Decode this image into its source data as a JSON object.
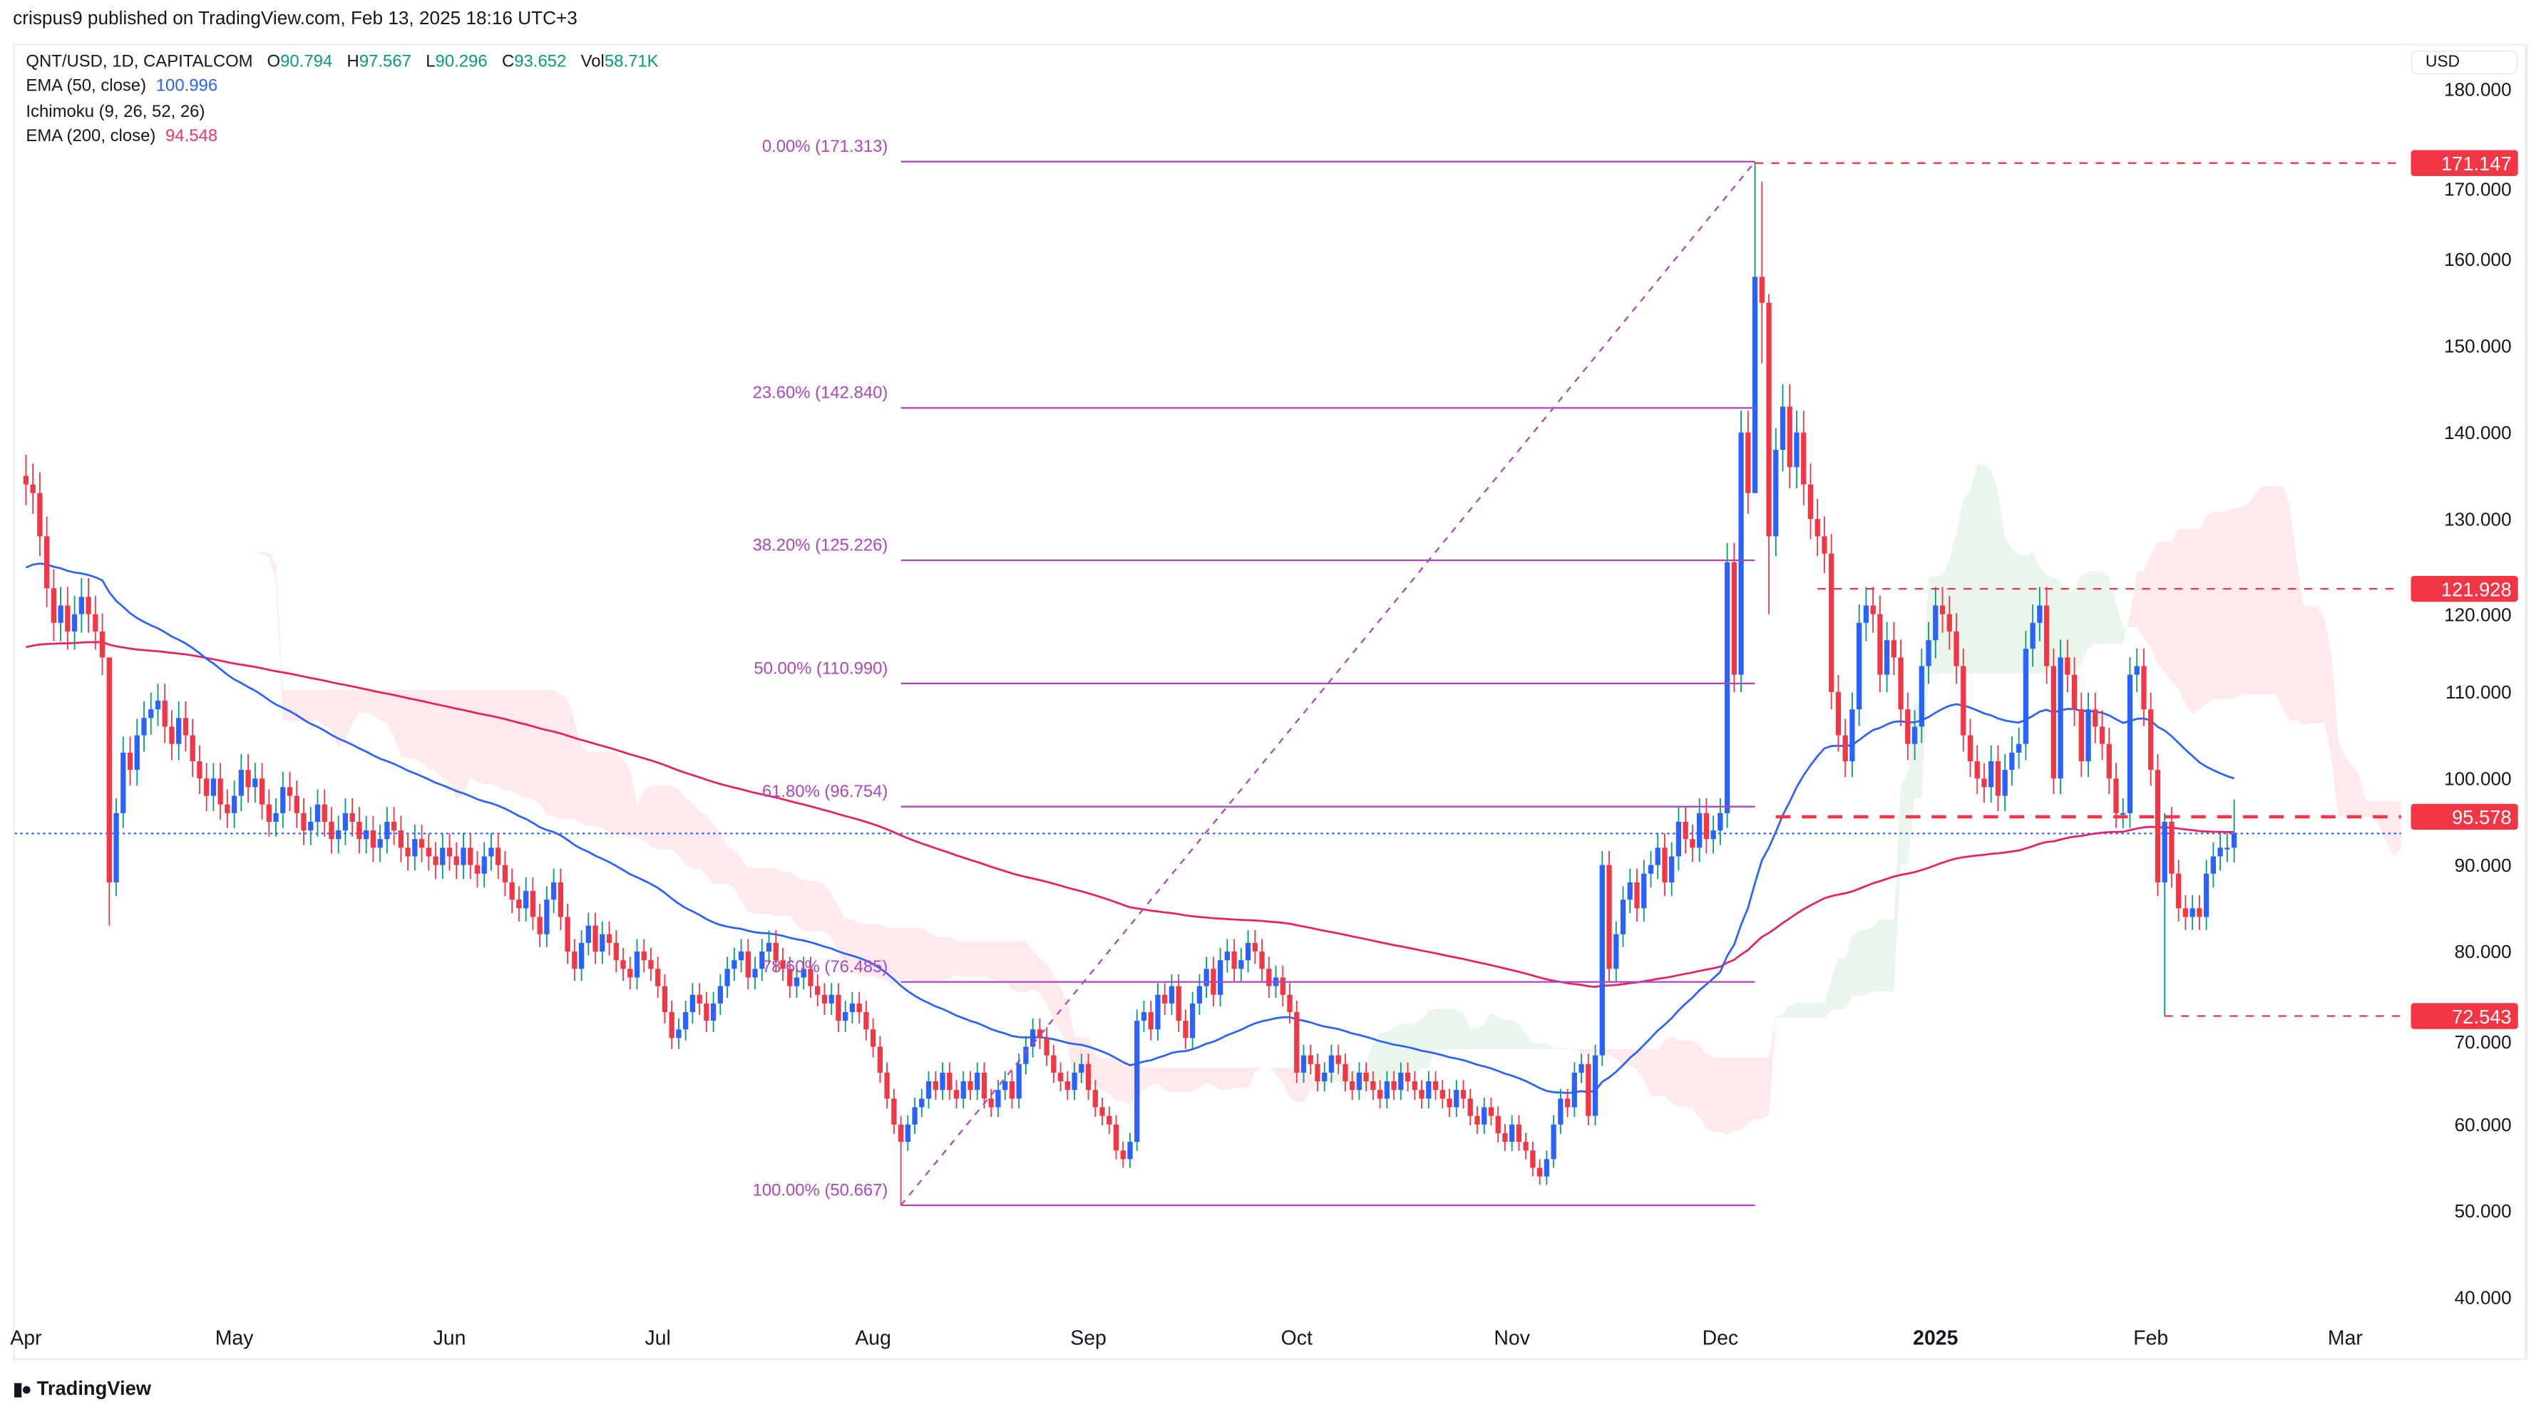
{
  "header": {
    "published": "crispus9 published on TradingView.com, Feb 13, 2025 18:16 UTC+3"
  },
  "legend": {
    "symbol": "QNT/USD, 1D, CAPITALCOM",
    "open_label": "O",
    "open": "90.794",
    "high_label": "H",
    "high": "97.567",
    "low_label": "L",
    "low": "90.296",
    "close_label": "C",
    "close": "93.652",
    "vol_label": "Vol",
    "vol": "58.71K",
    "ema50_label": "EMA (50, close)",
    "ema50": "100.996",
    "ichimoku_label": "Ichimoku (9, 26, 52, 26)",
    "ema200_label": "EMA (200, close)",
    "ema200": "94.548"
  },
  "axis": {
    "currency": "USD"
  },
  "footer": {
    "logo_text": "TradingView"
  },
  "colors": {
    "up_body": "#2962ff",
    "up_wick": "#089981",
    "down": "#f23645",
    "ema50": "#2962ff",
    "ema200": "#e91e63",
    "fib": "#ab47bc",
    "cloud_up": "rgba(67,160,71,0.11)",
    "cloud_down": "rgba(242,54,69,0.11)",
    "level": "#f23645",
    "last_price": "#2962ff"
  },
  "chart_data": {
    "type": "candlestick",
    "title": "QNT/USD, 1D, CAPITALCOM",
    "start_date": "2024-04-01",
    "ylim": [
      35,
      183
    ],
    "y_ticks": [
      40,
      50,
      60,
      70,
      80,
      90,
      100,
      110,
      120,
      130,
      140,
      150,
      160,
      170,
      180
    ],
    "y_tick_labels": [
      "40.000",
      "50.000",
      "60.000",
      "70.000",
      "80.000",
      "90.000",
      "100.000",
      "110.000",
      "120.000",
      "130.000",
      "140.000",
      "150.000",
      "160.000",
      "170.000",
      "180.000"
    ],
    "x_ticks": [
      {
        "label": "Apr",
        "day": 0
      },
      {
        "label": "May",
        "day": 30
      },
      {
        "label": "Jun",
        "day": 61
      },
      {
        "label": "Jul",
        "day": 91
      },
      {
        "label": "Aug",
        "day": 122
      },
      {
        "label": "Sep",
        "day": 153
      },
      {
        "label": "Oct",
        "day": 183
      },
      {
        "label": "Nov",
        "day": 214
      },
      {
        "label": "Dec",
        "day": 244
      },
      {
        "label": "2025",
        "day": 275,
        "bold": true
      },
      {
        "label": "Feb",
        "day": 306
      },
      {
        "label": "Mar",
        "day": 334
      }
    ],
    "x_range_days": [
      -2,
      342
    ],
    "closes": [
      134,
      133,
      128,
      122,
      118,
      120,
      117,
      119,
      121,
      119,
      117,
      114,
      88,
      96,
      103,
      101,
      105,
      107,
      108,
      109,
      106,
      104,
      107,
      105,
      102,
      100,
      98,
      100,
      97,
      96,
      98,
      101,
      99,
      100,
      97,
      95,
      96,
      99,
      98,
      96,
      94,
      95,
      97,
      95,
      93,
      94,
      96,
      95,
      93,
      94,
      92,
      93,
      95,
      94,
      92,
      91,
      93,
      92,
      91,
      90,
      92,
      91,
      90,
      92,
      90,
      89,
      91,
      92,
      90,
      88,
      86,
      85,
      87,
      84,
      82,
      86,
      88,
      84,
      80,
      78,
      81,
      83,
      80,
      82,
      81,
      79,
      78,
      77,
      80,
      79,
      78,
      76,
      73,
      70,
      71,
      73,
      75,
      74,
      72,
      74,
      76,
      78,
      79,
      80,
      77,
      78,
      80,
      81,
      79,
      78,
      76,
      77,
      78,
      76,
      75,
      74,
      75,
      72,
      73,
      74,
      73,
      71,
      69,
      66,
      63,
      60,
      58,
      60,
      62,
      63,
      65,
      64,
      66,
      64,
      63,
      65,
      64,
      66,
      63,
      62,
      64,
      65,
      63,
      67,
      69,
      71,
      70,
      68,
      66,
      65,
      64,
      66,
      67,
      64,
      62,
      61,
      60,
      57,
      56,
      58,
      72,
      73,
      71,
      75,
      74,
      76,
      72,
      70,
      74,
      76,
      78,
      75,
      79,
      80,
      78,
      79,
      81,
      80,
      78,
      76,
      77,
      75,
      73,
      66,
      68,
      67,
      65,
      66,
      68,
      67,
      65,
      64,
      66,
      65,
      64,
      63,
      65,
      64,
      66,
      65,
      64,
      63,
      65,
      64,
      63,
      62,
      64,
      63,
      61,
      60,
      62,
      61,
      59,
      58,
      60,
      58,
      57,
      55,
      54,
      56,
      60,
      63,
      62,
      66,
      67,
      61,
      68,
      90,
      78,
      82,
      86,
      88,
      85,
      89,
      90,
      92,
      88,
      91,
      95,
      93,
      92,
      96,
      93,
      94,
      96,
      125,
      112,
      140,
      133,
      158,
      155,
      128,
      138,
      143,
      136,
      140,
      134,
      130,
      128,
      126,
      110,
      105,
      102,
      108,
      118,
      120,
      119,
      112,
      116,
      114,
      108,
      104,
      106,
      113,
      116,
      120,
      119,
      117,
      113,
      105,
      102,
      100,
      99,
      102,
      98,
      101,
      103,
      104,
      115,
      118,
      120,
      113,
      100,
      114,
      112,
      108,
      102,
      108,
      106,
      104,
      100,
      96,
      96,
      112,
      113,
      108,
      101,
      88,
      95,
      89,
      85,
      84,
      85,
      84,
      89,
      91,
      92,
      92,
      93.652
    ],
    "wick_overrides": {
      "12": [
        99,
        83
      ],
      "126": [
        61,
        50.667
      ],
      "249": [
        171.313,
        150
      ],
      "250": [
        169,
        148
      ],
      "251": [
        156,
        119
      ],
      "308": [
        96,
        72.543
      ],
      "318": [
        97.567,
        90.296
      ]
    },
    "ema50_seed": 124,
    "ema200_seed": 115,
    "ichimoku": {
      "tenkan": 9,
      "kijun": 26,
      "spanB": 52,
      "shift": 26
    },
    "fibonacci": {
      "from_day": 126,
      "to_day": 249,
      "levels": [
        {
          "label": "0.00% (171.313)",
          "price": 171.313
        },
        {
          "label": "23.60% (142.840)",
          "price": 142.84
        },
        {
          "label": "38.20% (125.226)",
          "price": 125.226
        },
        {
          "label": "50.00% (110.990)",
          "price": 110.99
        },
        {
          "label": "61.80% (96.754)",
          "price": 96.754
        },
        {
          "label": "78.60% (76.485)",
          "price": 76.485
        },
        {
          "label": "100.00% (50.667)",
          "price": 50.667
        }
      ]
    },
    "horizontal_levels": [
      {
        "price": 171.147,
        "label": "171.147",
        "from_day": 249,
        "style": "thin"
      },
      {
        "price": 121.928,
        "label": "121.928",
        "from_day": 258,
        "style": "thin"
      },
      {
        "price": 95.578,
        "label": "95.578",
        "from_day": 252,
        "style": "thick"
      },
      {
        "price": 72.543,
        "label": "72.543",
        "from_day": 308,
        "style": "thin"
      }
    ],
    "last_price": 93.652
  }
}
